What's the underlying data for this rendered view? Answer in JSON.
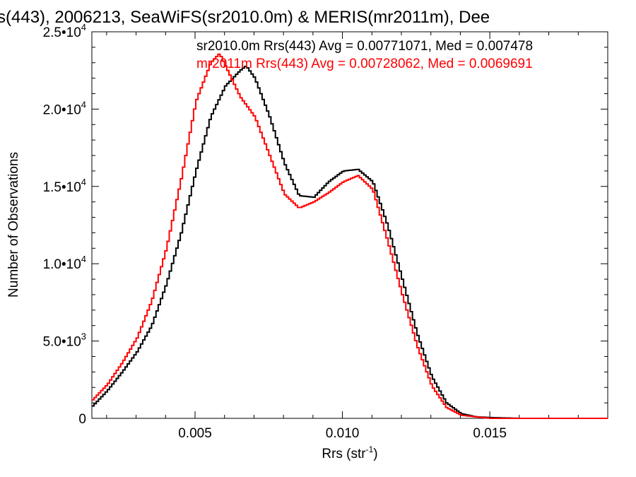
{
  "chart_data": {
    "type": "line",
    "title": "s(443), 2006213, SeaWiFS(sr2010.0m) & MERIS(mr2011m), Dee",
    "xlabel": "Rrs (str",
    "xlabel_sup": "-1",
    "xlabel_close": ")",
    "ylabel": "Number of Observations",
    "xlim": [
      0.0015,
      0.019
    ],
    "ylim": [
      0,
      25000
    ],
    "x_ticks": [
      {
        "value": 0.005,
        "label": "0.005"
      },
      {
        "value": 0.01,
        "label": "0.010"
      },
      {
        "value": 0.015,
        "label": "0.015"
      }
    ],
    "y_ticks": [
      {
        "value": 0,
        "base": "0",
        "exp": ""
      },
      {
        "value": 5000,
        "base": "5.0•10",
        "exp": "3"
      },
      {
        "value": 10000,
        "base": "1.0•10",
        "exp": "4"
      },
      {
        "value": 15000,
        "base": "1.5•10",
        "exp": "4"
      },
      {
        "value": 20000,
        "base": "2.0•10",
        "exp": "4"
      },
      {
        "value": 25000,
        "base": "2.5•10",
        "exp": "4"
      }
    ],
    "annotations": [
      {
        "text": "sr2010.0m Rrs(443) Avg = 0.00771071, Med = 0.007478",
        "color": "#000000"
      },
      {
        "text": "mr2011m Rrs(443) Avg = 0.00728062, Med = 0.0069691",
        "color": "#ff0000"
      }
    ],
    "series": [
      {
        "color": "#000000",
        "x": [
          0.0015,
          0.002,
          0.0025,
          0.003,
          0.0035,
          0.004,
          0.0045,
          0.005,
          0.0055,
          0.006,
          0.0065,
          0.0067,
          0.007,
          0.0075,
          0.008,
          0.0085,
          0.009,
          0.0095,
          0.01,
          0.0105,
          0.011,
          0.0115,
          0.012,
          0.0125,
          0.013,
          0.0135,
          0.014,
          0.0145,
          0.015,
          0.016,
          0.019
        ],
        "y": [
          800,
          1800,
          3000,
          4300,
          6000,
          8700,
          12000,
          16000,
          19500,
          21500,
          22500,
          22800,
          22000,
          19500,
          16500,
          14400,
          14300,
          15300,
          16000,
          16100,
          15300,
          12500,
          9000,
          5500,
          2700,
          1000,
          300,
          100,
          50,
          0,
          0
        ]
      },
      {
        "color": "#ff0000",
        "x": [
          0.0015,
          0.002,
          0.0025,
          0.003,
          0.0035,
          0.004,
          0.0045,
          0.005,
          0.0055,
          0.0058,
          0.006,
          0.0065,
          0.007,
          0.0075,
          0.008,
          0.0085,
          0.009,
          0.0095,
          0.01,
          0.0105,
          0.011,
          0.0115,
          0.012,
          0.0125,
          0.013,
          0.0135,
          0.014,
          0.015,
          0.019
        ],
        "y": [
          1200,
          2200,
          3600,
          5200,
          7600,
          11000,
          15500,
          20500,
          23000,
          23600,
          22800,
          20800,
          19500,
          17000,
          14500,
          13600,
          14000,
          14600,
          15300,
          15700,
          14800,
          11500,
          8000,
          4700,
          2100,
          700,
          200,
          0,
          0
        ]
      }
    ]
  }
}
